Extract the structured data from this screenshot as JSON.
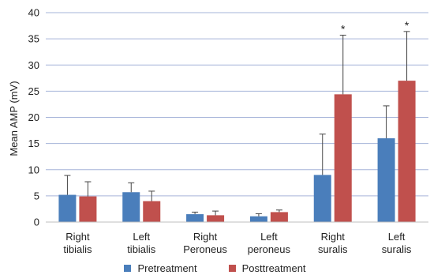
{
  "chart_data": {
    "type": "bar",
    "ylabel": "Mean AMP (mV)",
    "ylim": [
      0,
      40
    ],
    "yticks": [
      0,
      5,
      10,
      15,
      20,
      25,
      30,
      35,
      40
    ],
    "grid": true,
    "legend_position": "bottom",
    "categories": [
      [
        "Right",
        "tibialis"
      ],
      [
        "Left",
        "tibialis"
      ],
      [
        "Right",
        "Peroneus"
      ],
      [
        "Left",
        "peroneus"
      ],
      [
        "Right",
        "suralis"
      ],
      [
        "Left",
        "suralis"
      ]
    ],
    "series": [
      {
        "name": "Pretreatment",
        "color": "#4a7ebb",
        "values": [
          5.2,
          5.7,
          1.5,
          1.1,
          9.0,
          16.0
        ],
        "errors": [
          3.7,
          1.8,
          0.4,
          0.5,
          7.8,
          6.2
        ]
      },
      {
        "name": "Posttreatment",
        "color": "#c0504d",
        "values": [
          4.9,
          4.0,
          1.3,
          1.9,
          24.4,
          27.0
        ],
        "errors": [
          2.8,
          1.9,
          0.8,
          0.4,
          11.3,
          9.4
        ]
      }
    ],
    "annotations": [
      {
        "category_index": 4,
        "series": "Posttreatment",
        "text": "*"
      },
      {
        "category_index": 5,
        "series": "Posttreatment",
        "text": "*"
      }
    ]
  }
}
